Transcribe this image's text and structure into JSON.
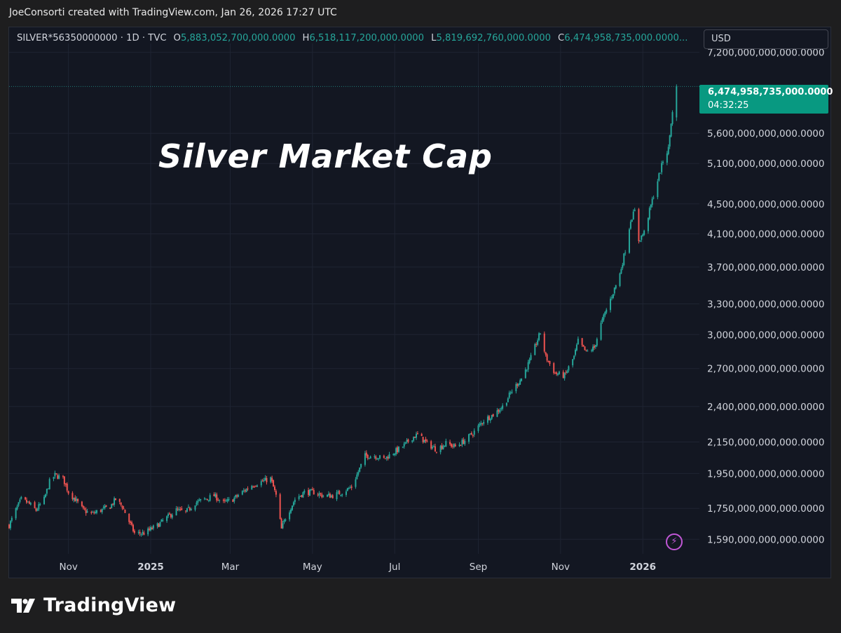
{
  "attribution": "JoeConsorti created with TradingView.com, Jan 26, 2026 17:27 UTC",
  "legend": {
    "symbol": "SILVER*56350000000 · 1D · TVC",
    "o_label": "O",
    "o_value": "5,883,052,700,000.0000",
    "h_label": "H",
    "h_value": "6,518,117,200,000.0000",
    "l_label": "L",
    "l_value": "5,819,692,760,000.0000",
    "c_label": "C",
    "c_value": "6,474,958,735,000.0000..."
  },
  "currency": "USD",
  "last_price": "6,474,958,735,000.0000",
  "countdown": "04:32:25",
  "brand": "TradingView",
  "colors": {
    "up": "#26a69a",
    "down": "#ef5350",
    "badge": "#089981",
    "background": "#131722",
    "grid": "#1f2432"
  },
  "icons": {
    "alert": "lightning-icon",
    "logo": "tradingview-logo-icon"
  },
  "chart_data": {
    "type": "candlestick",
    "title": "Silver Market Cap",
    "scale": "log",
    "ylim": [
      1520000000000,
      7400000000000
    ],
    "y_ticks": [
      {
        "value": 7200000000000,
        "label": "7,200,000,000,000.0000"
      },
      {
        "value": 5600000000000,
        "label": "5,600,000,000,000.0000"
      },
      {
        "value": 5100000000000,
        "label": "5,100,000,000,000.0000"
      },
      {
        "value": 4500000000000,
        "label": "4,500,000,000,000.0000"
      },
      {
        "value": 4100000000000,
        "label": "4,100,000,000,000.0000"
      },
      {
        "value": 3700000000000,
        "label": "3,700,000,000,000.0000"
      },
      {
        "value": 3300000000000,
        "label": "3,300,000,000,000.0000"
      },
      {
        "value": 3000000000000,
        "label": "3,000,000,000,000.0000"
      },
      {
        "value": 2700000000000,
        "label": "2,700,000,000,000.0000"
      },
      {
        "value": 2400000000000,
        "label": "2,400,000,000,000.0000"
      },
      {
        "value": 2150000000000,
        "label": "2,150,000,000,000.0000"
      },
      {
        "value": 1950000000000,
        "label": "1,950,000,000,000.0000"
      },
      {
        "value": 1750000000000,
        "label": "1,750,000,000,000.0000"
      },
      {
        "value": 1590000000000,
        "label": "1,590,000,000,000.0000"
      }
    ],
    "x_ticks": [
      {
        "date": "2024-11-01",
        "label": "Nov",
        "bold": false
      },
      {
        "date": "2025-01-01",
        "label": "2025",
        "bold": true
      },
      {
        "date": "2025-03-01",
        "label": "Mar",
        "bold": false
      },
      {
        "date": "2025-05-01",
        "label": "May",
        "bold": false
      },
      {
        "date": "2025-07-01",
        "label": "Jul",
        "bold": false
      },
      {
        "date": "2025-09-01",
        "label": "Sep",
        "bold": false
      },
      {
        "date": "2025-11-01",
        "label": "Nov",
        "bold": false
      },
      {
        "date": "2026-01-01",
        "label": "2026",
        "bold": true
      }
    ],
    "xlim": [
      "2024-09-18",
      "2026-02-12"
    ],
    "last_close": 6474958735000,
    "close_series_trillions": [
      [
        "2024-09-18",
        1.66
      ],
      [
        "2024-09-23",
        1.74
      ],
      [
        "2024-09-27",
        1.8
      ],
      [
        "2024-10-02",
        1.78
      ],
      [
        "2024-10-08",
        1.74
      ],
      [
        "2024-10-14",
        1.8
      ],
      [
        "2024-10-18",
        1.9
      ],
      [
        "2024-10-22",
        1.94
      ],
      [
        "2024-10-28",
        1.92
      ],
      [
        "2024-11-01",
        1.84
      ],
      [
        "2024-11-06",
        1.8
      ],
      [
        "2024-11-12",
        1.74
      ],
      [
        "2024-11-18",
        1.72
      ],
      [
        "2024-11-25",
        1.74
      ],
      [
        "2024-12-02",
        1.76
      ],
      [
        "2024-12-06",
        1.8
      ],
      [
        "2024-12-11",
        1.76
      ],
      [
        "2024-12-16",
        1.68
      ],
      [
        "2024-12-20",
        1.62
      ],
      [
        "2024-12-27",
        1.62
      ],
      [
        "2025-01-06",
        1.66
      ],
      [
        "2025-01-13",
        1.7
      ],
      [
        "2025-01-20",
        1.74
      ],
      [
        "2025-01-27",
        1.73
      ],
      [
        "2025-02-03",
        1.78
      ],
      [
        "2025-02-10",
        1.8
      ],
      [
        "2025-02-17",
        1.82
      ],
      [
        "2025-02-24",
        1.78
      ],
      [
        "2025-03-03",
        1.8
      ],
      [
        "2025-03-10",
        1.84
      ],
      [
        "2025-03-17",
        1.88
      ],
      [
        "2025-03-24",
        1.9
      ],
      [
        "2025-03-31",
        1.92
      ],
      [
        "2025-04-04",
        1.82
      ],
      [
        "2025-04-08",
        1.64
      ],
      [
        "2025-04-11",
        1.7
      ],
      [
        "2025-04-18",
        1.8
      ],
      [
        "2025-04-25",
        1.84
      ],
      [
        "2025-05-02",
        1.84
      ],
      [
        "2025-05-09",
        1.82
      ],
      [
        "2025-05-16",
        1.82
      ],
      [
        "2025-05-23",
        1.84
      ],
      [
        "2025-05-30",
        1.87
      ],
      [
        "2025-06-04",
        1.96
      ],
      [
        "2025-06-09",
        2.06
      ],
      [
        "2025-06-16",
        2.06
      ],
      [
        "2025-06-23",
        2.04
      ],
      [
        "2025-06-30",
        2.08
      ],
      [
        "2025-07-07",
        2.12
      ],
      [
        "2025-07-14",
        2.18
      ],
      [
        "2025-07-18",
        2.2
      ],
      [
        "2025-07-25",
        2.14
      ],
      [
        "2025-08-01",
        2.1
      ],
      [
        "2025-08-08",
        2.14
      ],
      [
        "2025-08-15",
        2.12
      ],
      [
        "2025-08-22",
        2.16
      ],
      [
        "2025-08-29",
        2.22
      ],
      [
        "2025-09-05",
        2.3
      ],
      [
        "2025-09-12",
        2.34
      ],
      [
        "2025-09-19",
        2.4
      ],
      [
        "2025-09-26",
        2.52
      ],
      [
        "2025-10-03",
        2.62
      ],
      [
        "2025-10-09",
        2.76
      ],
      [
        "2025-10-14",
        2.92
      ],
      [
        "2025-10-17",
        3.02
      ],
      [
        "2025-10-21",
        2.8
      ],
      [
        "2025-10-28",
        2.66
      ],
      [
        "2025-11-04",
        2.64
      ],
      [
        "2025-11-11",
        2.8
      ],
      [
        "2025-11-14",
        2.94
      ],
      [
        "2025-11-20",
        2.84
      ],
      [
        "2025-11-26",
        2.88
      ],
      [
        "2025-12-01",
        3.1
      ],
      [
        "2025-12-05",
        3.24
      ],
      [
        "2025-12-10",
        3.42
      ],
      [
        "2025-12-15",
        3.62
      ],
      [
        "2025-12-19",
        3.9
      ],
      [
        "2025-12-23",
        4.28
      ],
      [
        "2025-12-26",
        4.4
      ],
      [
        "2025-12-29",
        4.02
      ],
      [
        "2026-01-02",
        4.12
      ],
      [
        "2026-01-07",
        4.48
      ],
      [
        "2026-01-12",
        4.84
      ],
      [
        "2026-01-16",
        5.14
      ],
      [
        "2026-01-20",
        5.34
      ],
      [
        "2026-01-22",
        5.8
      ],
      [
        "2026-01-26",
        6.47
      ]
    ]
  }
}
